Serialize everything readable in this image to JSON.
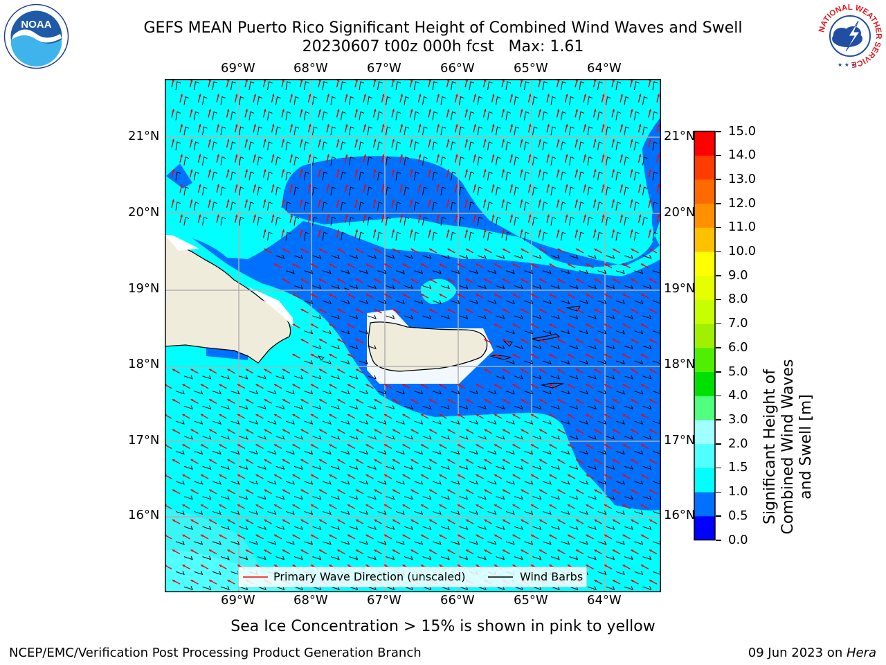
{
  "title": "GEFS MEAN Puerto Rico Significant Height of Combined Wind Waves and Swell",
  "subtitle": "20230607 t00z 000h fcst   Max: 1.61",
  "lon_ticks_top": [
    "69°W",
    "68°W",
    "67°W",
    "66°W",
    "65°W",
    "64°W"
  ],
  "lon_ticks_bottom": [
    "69°W",
    "68°W",
    "67°W",
    "66°W",
    "65°W",
    "64°W"
  ],
  "lat_ticks_left": [
    "21°N",
    "20°N",
    "19°N",
    "18°N",
    "17°N",
    "16°N"
  ],
  "lat_ticks_right": [
    "21°N",
    "20°N",
    "19°N",
    "18°N",
    "17°N",
    "16°N"
  ],
  "colorbar": {
    "label": "Significant Height of Combined Wind Waves and Swell [m]",
    "ticks": [
      "15.0",
      "14.0",
      "13.0",
      "12.0",
      "11.0",
      "10.0",
      "9.0",
      "8.0",
      "7.0",
      "6.0",
      "5.0",
      "4.0",
      "3.0",
      "2.0",
      "1.5",
      "1.0",
      "0.5",
      "0.0"
    ],
    "colors": [
      "#0000ff",
      "#0070ff",
      "#00ffff",
      "#50ffff",
      "#a0ffff",
      "#50ff80",
      "#00e000",
      "#50ee00",
      "#a0f000",
      "#c8ff00",
      "#e6ff00",
      "#ffff00",
      "#ffc000",
      "#ff9000",
      "#ff6a00",
      "#ff3c00",
      "#ff0000"
    ]
  },
  "legend": {
    "wave_label": "Primary Wave Direction (unscaled)",
    "barb_label": "Wind Barbs",
    "wave_color": "#ff0000",
    "barb_color": "#000000"
  },
  "note": "Sea Ice Concentration > 15% is shown in pink to yellow",
  "footer_left": "NCEP/EMC/Verification Post Processing Product Generation Branch",
  "footer_right_prefix": "09 Jun 2023 on ",
  "footer_right_host": "Hera",
  "logos": {
    "noaa_text": "NOAA",
    "nws_ring_text": "NATIONAL WEATHER SERVICE"
  },
  "colors": {
    "shallow": "#00ffff",
    "deep": "#0070ff",
    "light": "#50ffff",
    "land": "#f0ecdc"
  }
}
